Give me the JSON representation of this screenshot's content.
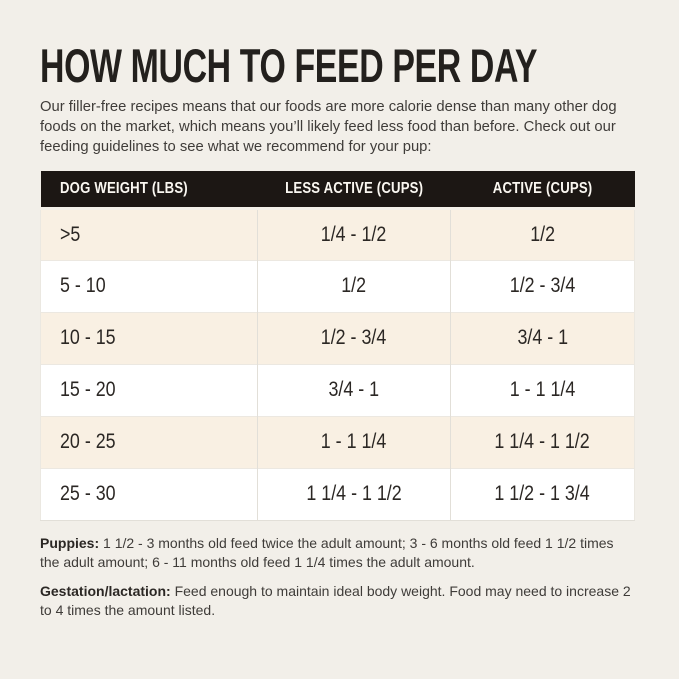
{
  "title": "HOW MUCH TO FEED PER DAY",
  "intro": "Our filler-free recipes means that our foods are more calorie dense than many other dog foods on the market, which means you’ll likely feed less food than before. Check out our feeding guidelines to see what we recommend for your pup:",
  "table": {
    "headers": [
      "DOG WEIGHT (LBS)",
      "LESS ACTIVE (CUPS)",
      "ACTIVE (CUPS)"
    ],
    "rows": [
      [
        ">5",
        "1/4 - 1/2",
        "1/2"
      ],
      [
        "5 - 10",
        "1/2",
        "1/2 - 3/4"
      ],
      [
        "10 - 15",
        "1/2 - 3/4",
        "3/4 - 1"
      ],
      [
        "15 - 20",
        "3/4 - 1",
        "1 - 1 1/4"
      ],
      [
        "20 - 25",
        "1 - 1 1/4",
        "1 1/4 - 1 1/2"
      ],
      [
        "25 - 30",
        "1 1/4 - 1 1/2",
        "1 1/2 - 1 3/4"
      ]
    ]
  },
  "notes": [
    {
      "label": "Puppies:",
      "text": "1 1/2 - 3 months old feed twice the adult amount; 3 - 6 months old feed 1 1/2 times the adult amount; 6 - 11 months old feed 1 1/4 times the adult amount."
    },
    {
      "label": "Gestation/lactation:",
      "text": "Feed enough to maintain ideal body weight. Food may need to increase 2 to 4 times the amount listed."
    }
  ],
  "colors": {
    "page_background": "#F2EFE9",
    "header_background": "#1C1714",
    "header_text": "#FAF7F1",
    "row_alt_background": "#F9F0E3",
    "row_background": "#FFFFFF",
    "body_text": "#3F3C39",
    "title_text": "#23201D"
  }
}
